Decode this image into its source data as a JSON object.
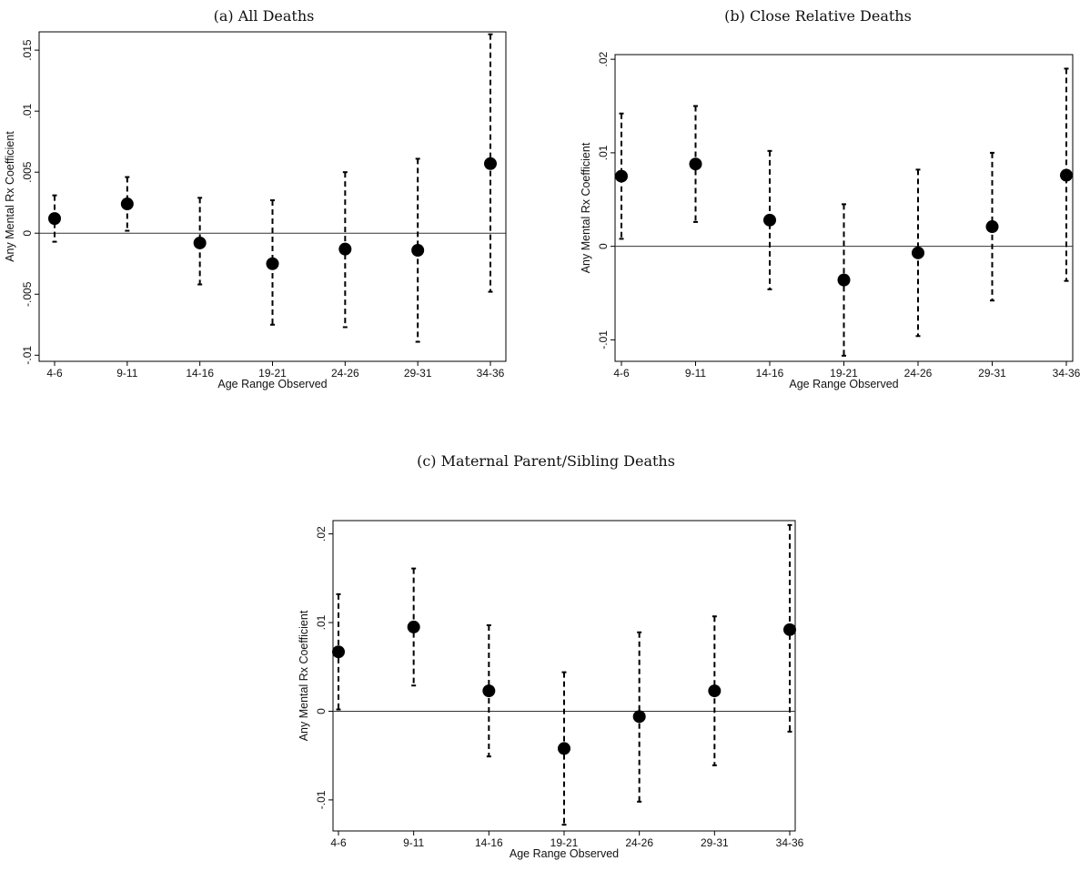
{
  "figure": {
    "panels": [
      {
        "title": "(a) All Deaths"
      },
      {
        "title": "(b) Close Relative Deaths"
      },
      {
        "title": "(c) Maternal Parent/Sibling Deaths"
      }
    ]
  },
  "chart_data": [
    {
      "type": "scatter",
      "title": "(a) All Deaths",
      "xlabel": "Age Range Observed",
      "ylabel": "Any Mental Rx Coefficient",
      "categories": [
        "4-6",
        "9-11",
        "14-16",
        "19-21",
        "24-26",
        "29-31",
        "34-36"
      ],
      "yticks": [
        -0.01,
        -0.005,
        0,
        0.005,
        0.01,
        0.015
      ],
      "ytick_labels": [
        "-.01",
        "-.005",
        "0",
        ".005",
        ".01",
        ".015"
      ],
      "ylim": [
        -0.0105,
        0.0165
      ],
      "reference_line": 0,
      "series": [
        {
          "values": [
            0.0012,
            0.0024,
            -0.0008,
            -0.0025,
            -0.0013,
            -0.0014,
            0.0057
          ],
          "ci_low": [
            -0.0007,
            0.0002,
            -0.0042,
            -0.0075,
            -0.0077,
            -0.0089,
            -0.0048
          ],
          "ci_high": [
            0.0031,
            0.0046,
            0.0029,
            0.0027,
            0.005,
            0.0061,
            0.0163
          ]
        }
      ]
    },
    {
      "type": "scatter",
      "title": "(b) Close Relative Deaths",
      "xlabel": "Age Range Observed",
      "ylabel": "Any Mental Rx Coefficient",
      "categories": [
        "4-6",
        "9-11",
        "14-16",
        "19-21",
        "24-26",
        "29-31",
        "34-36"
      ],
      "yticks": [
        -0.01,
        0,
        0.01,
        0.02
      ],
      "ytick_labels": [
        "-.01",
        "0",
        ".01",
        ".02"
      ],
      "ylim": [
        -0.0123,
        0.0205
      ],
      "reference_line": 0,
      "series": [
        {
          "values": [
            0.0075,
            0.0088,
            0.0028,
            -0.0036,
            -0.0007,
            0.0021,
            0.0076
          ],
          "ci_low": [
            0.0008,
            0.0026,
            -0.0046,
            -0.0117,
            -0.0096,
            -0.0058,
            -0.0037
          ],
          "ci_high": [
            0.0142,
            0.015,
            0.0102,
            0.0045,
            0.0082,
            0.01,
            0.019
          ]
        }
      ]
    },
    {
      "type": "scatter",
      "title": "(c) Maternal Parent/Sibling Deaths",
      "xlabel": "Age Range Observed",
      "ylabel": "Any Mental Rx Coefficient",
      "categories": [
        "4-6",
        "9-11",
        "14-16",
        "19-21",
        "24-26",
        "29-31",
        "34-36"
      ],
      "yticks": [
        -0.01,
        0,
        0.01,
        0.02
      ],
      "ytick_labels": [
        "-.01",
        "0",
        ".01",
        ".02"
      ],
      "ylim": [
        -0.0135,
        0.0215
      ],
      "reference_line": 0,
      "series": [
        {
          "values": [
            0.0067,
            0.0095,
            0.0023,
            -0.0042,
            -0.0006,
            0.0023,
            0.0092
          ],
          "ci_low": [
            0.0002,
            0.0029,
            -0.0051,
            -0.0128,
            -0.0102,
            -0.0061,
            -0.0023
          ],
          "ci_high": [
            0.0132,
            0.0161,
            0.0097,
            0.0044,
            0.0089,
            0.0107,
            0.021
          ]
        }
      ]
    }
  ]
}
